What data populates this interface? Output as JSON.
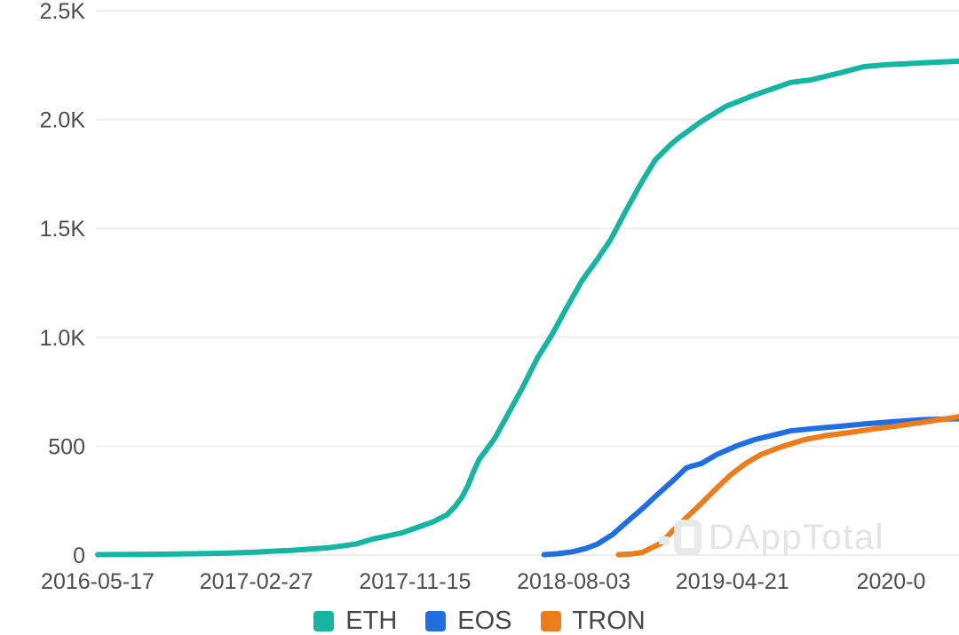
{
  "chart": {
    "watermark": {
      "text": "DAppTotal"
    },
    "colors": {
      "grid": "#ededed",
      "axis_text": "#4d4d4d",
      "legend_text": "#474747",
      "watermark": "#e7e7e7",
      "background": "#ffffff"
    }
  },
  "chart_data": {
    "type": "line",
    "title": "",
    "xlabel": "",
    "ylabel": "",
    "grid": true,
    "legend_position": "bottom",
    "ylim": [
      0,
      2500
    ],
    "y_ticks": [
      {
        "value": 2500,
        "label": "2.5K"
      },
      {
        "value": 2000,
        "label": "2.0K"
      },
      {
        "value": 1500,
        "label": "1.5K"
      },
      {
        "value": 1000,
        "label": "1.0K"
      },
      {
        "value": 500,
        "label": "500"
      },
      {
        "value": 0,
        "label": "0"
      }
    ],
    "x_epoch": "2016-05-17",
    "x_span_days": 1424,
    "x_tick_labels": [
      "2016-05-17",
      "2017-02-27",
      "2017-11-15",
      "2018-08-03",
      "2019-04-21",
      "2020-0"
    ],
    "legend": [
      {
        "label": "ETH",
        "color": "#15b5a2"
      },
      {
        "label": "EOS",
        "color": "#1f6fe2"
      },
      {
        "label": "TRON",
        "color": "#ee7c1b"
      }
    ],
    "series": [
      {
        "name": "ETH",
        "color": "#15b5a2",
        "points": [
          [
            "2016-05-17",
            2
          ],
          [
            "2016-07-15",
            3
          ],
          [
            "2016-09-26",
            5
          ],
          [
            "2016-12-08",
            8
          ],
          [
            "2017-02-05",
            14
          ],
          [
            "2017-02-27",
            17
          ],
          [
            "2017-04-05",
            22
          ],
          [
            "2017-06-03",
            34
          ],
          [
            "2017-07-17",
            50
          ],
          [
            "2017-08-15",
            74
          ],
          [
            "2017-10-02",
            102
          ],
          [
            "2017-11-21",
            151
          ],
          [
            "2017-12-15",
            184
          ],
          [
            "2017-12-29",
            224
          ],
          [
            "2018-01-09",
            265
          ],
          [
            "2018-01-19",
            318
          ],
          [
            "2018-01-28",
            380
          ],
          [
            "2018-02-07",
            441
          ],
          [
            "2018-02-17",
            477
          ],
          [
            "2018-03-05",
            538
          ],
          [
            "2018-03-26",
            645
          ],
          [
            "2018-04-19",
            767
          ],
          [
            "2018-05-14",
            905
          ],
          [
            "2018-06-07",
            1012
          ],
          [
            "2018-07-01",
            1134
          ],
          [
            "2018-07-26",
            1257
          ],
          [
            "2018-08-20",
            1354
          ],
          [
            "2018-09-12",
            1448
          ],
          [
            "2018-10-07",
            1580
          ],
          [
            "2018-11-01",
            1706
          ],
          [
            "2018-11-25",
            1815
          ],
          [
            "2018-12-20",
            1884
          ],
          [
            "2019-01-03",
            1917
          ],
          [
            "2019-02-09",
            1991
          ],
          [
            "2019-03-21",
            2060
          ],
          [
            "2019-05-08",
            2113
          ],
          [
            "2019-07-06",
            2170
          ],
          [
            "2019-08-09",
            2182
          ],
          [
            "2019-09-27",
            2215
          ],
          [
            "2019-11-05",
            2243
          ],
          [
            "2019-12-14",
            2252
          ],
          [
            "2020-02-11",
            2260
          ],
          [
            "2020-04-10",
            2268
          ]
        ]
      },
      {
        "name": "EOS",
        "color": "#1f6fe2",
        "points": [
          [
            "2018-05-25",
            2
          ],
          [
            "2018-06-16",
            6
          ],
          [
            "2018-07-11",
            15
          ],
          [
            "2018-08-02",
            30
          ],
          [
            "2018-08-21",
            50
          ],
          [
            "2018-09-15",
            94
          ],
          [
            "2018-10-10",
            155
          ],
          [
            "2018-11-03",
            212
          ],
          [
            "2018-11-28",
            277
          ],
          [
            "2018-12-23",
            339
          ],
          [
            "2019-01-15",
            400
          ],
          [
            "2019-01-23",
            408
          ],
          [
            "2019-02-09",
            420
          ],
          [
            "2019-03-06",
            461
          ],
          [
            "2019-04-09",
            502
          ],
          [
            "2019-05-08",
            530
          ],
          [
            "2019-06-14",
            555
          ],
          [
            "2019-07-06",
            570
          ],
          [
            "2019-08-09",
            580
          ],
          [
            "2019-08-29",
            585
          ],
          [
            "2019-10-02",
            593
          ],
          [
            "2019-11-05",
            602
          ],
          [
            "2019-12-22",
            612
          ],
          [
            "2020-02-11",
            622
          ],
          [
            "2020-04-10",
            626
          ]
        ]
      },
      {
        "name": "TRON",
        "color": "#ee7c1b",
        "points": [
          [
            "2018-09-25",
            2
          ],
          [
            "2018-10-15",
            5
          ],
          [
            "2018-11-03",
            12
          ],
          [
            "2018-11-20",
            35
          ],
          [
            "2018-12-05",
            55
          ],
          [
            "2018-12-23",
            110
          ],
          [
            "2018-12-31",
            131
          ],
          [
            "2019-01-15",
            171
          ],
          [
            "2019-02-09",
            237
          ],
          [
            "2019-03-06",
            306
          ],
          [
            "2019-03-29",
            367
          ],
          [
            "2019-04-23",
            420
          ],
          [
            "2019-05-18",
            461
          ],
          [
            "2019-06-14",
            490
          ],
          [
            "2019-07-06",
            510
          ],
          [
            "2019-07-30",
            530
          ],
          [
            "2019-09-02",
            548
          ],
          [
            "2019-10-12",
            563
          ],
          [
            "2019-11-18",
            578
          ],
          [
            "2019-12-24",
            591
          ],
          [
            "2020-02-11",
            610
          ],
          [
            "2020-03-30",
            630
          ],
          [
            "2020-04-10",
            636
          ]
        ]
      }
    ]
  }
}
